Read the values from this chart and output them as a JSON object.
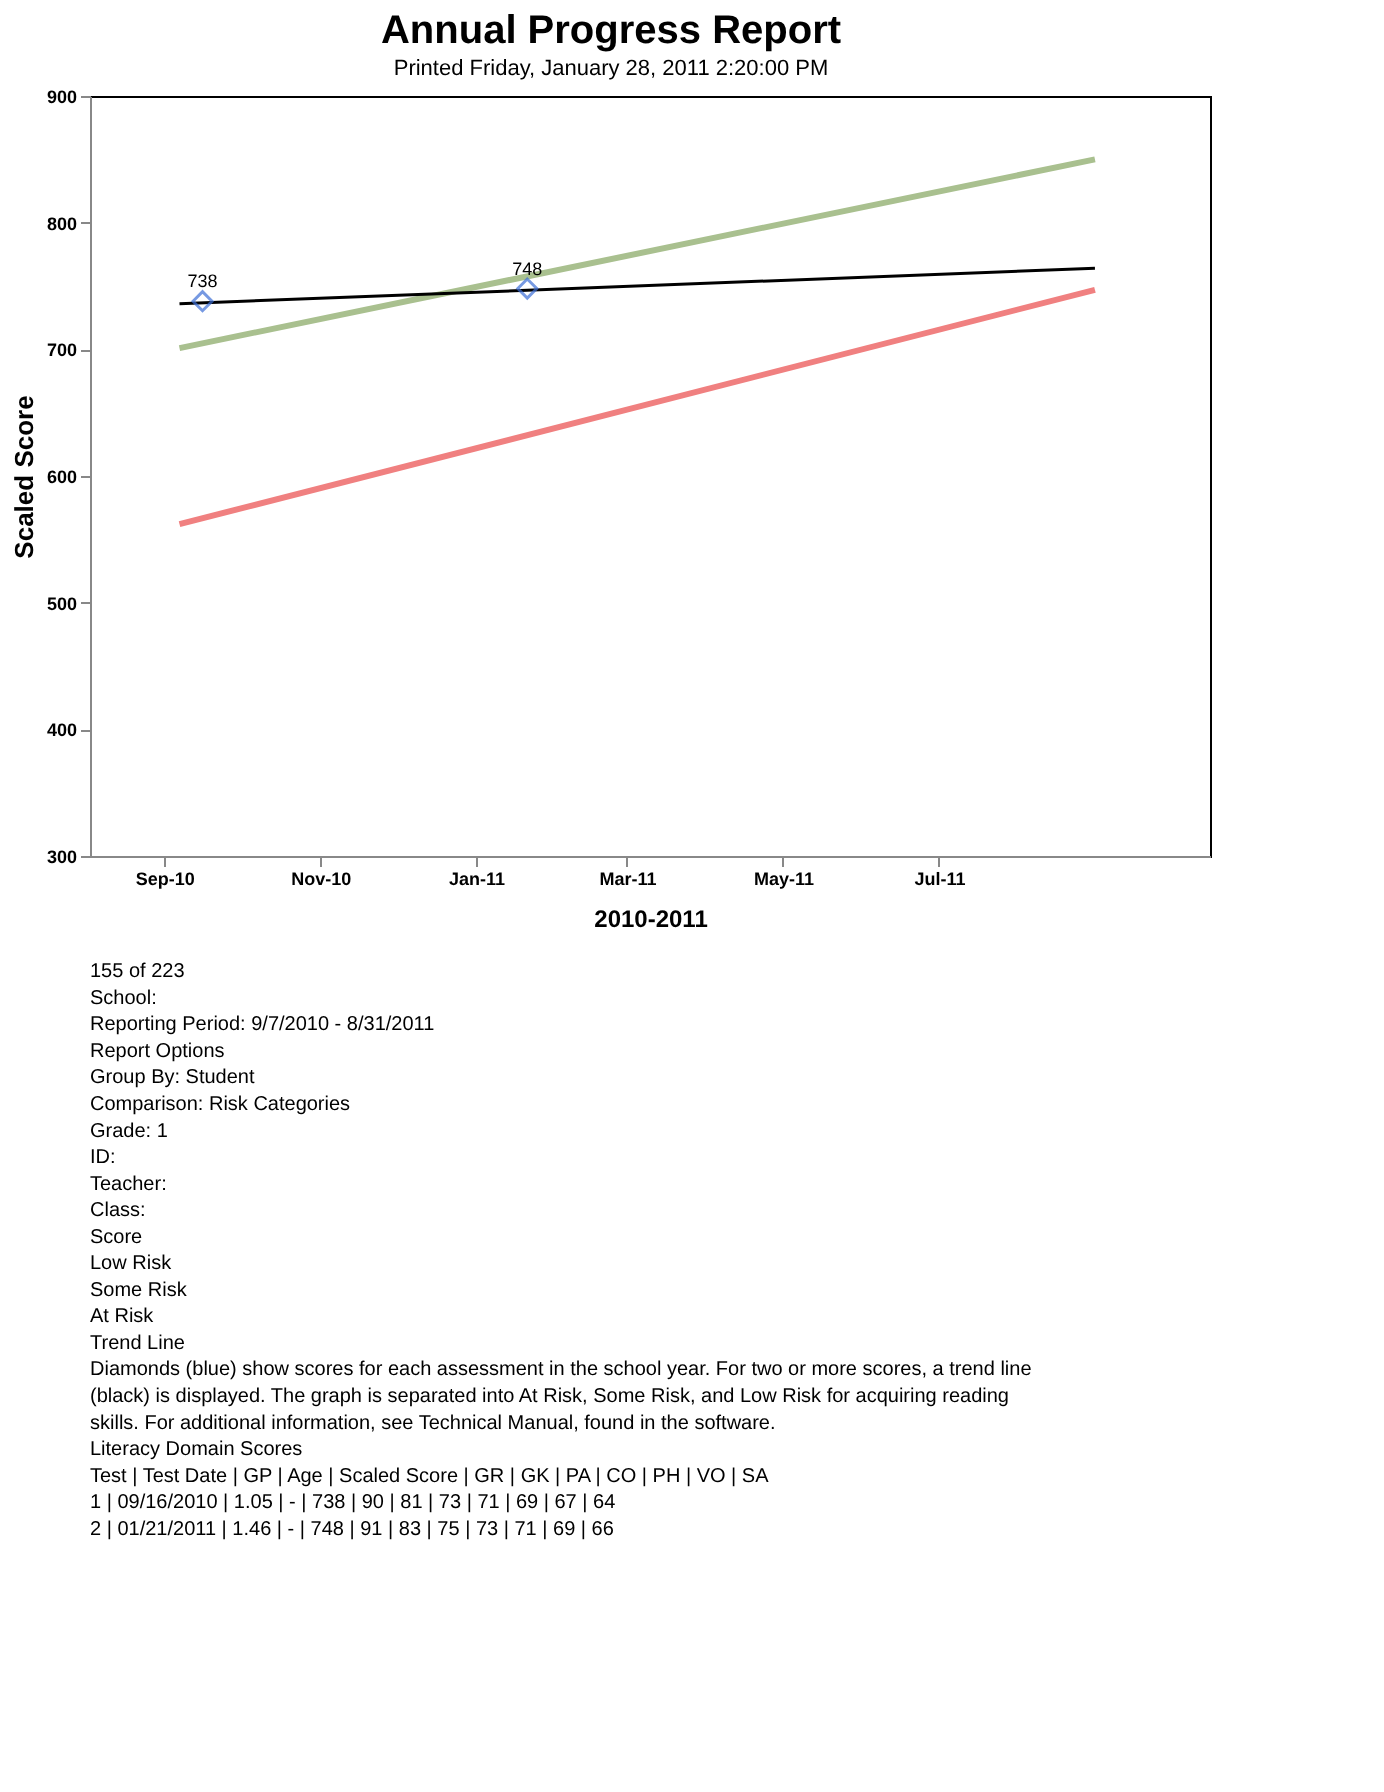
{
  "chart_data": {
    "type": "line",
    "title": "Annual Progress Report",
    "subtitle": "Printed Friday, January 28, 2011  2:20:00 PM",
    "xlabel": "2010-2011",
    "ylabel": "Scaled Score",
    "xlim": [
      "2010-08-03",
      "2011-10-15"
    ],
    "ylim": [
      300,
      900
    ],
    "yticks": [
      300,
      400,
      500,
      600,
      700,
      800,
      900
    ],
    "xticks": [
      {
        "value": "2010-09-01",
        "label": "Sep-10"
      },
      {
        "value": "2010-11-01",
        "label": "Nov-10"
      },
      {
        "value": "2011-01-01",
        "label": "Jan-11"
      },
      {
        "value": "2011-03-01",
        "label": "Mar-11"
      },
      {
        "value": "2011-05-01",
        "label": "May-11"
      },
      {
        "value": "2011-07-01",
        "label": "Jul-11"
      }
    ],
    "grid": false,
    "series": [
      {
        "color": "#a9c08f",
        "x": [
          "2010-09-07",
          "2011-08-31"
        ],
        "values": [
          701,
          850
        ]
      },
      {
        "color": "#f08080",
        "x": [
          "2010-09-07",
          "2011-08-31"
        ],
        "values": [
          562,
          747
        ]
      },
      {
        "color": "#000000",
        "x": [
          "2010-09-07",
          "2011-08-31"
        ],
        "values": [
          736,
          764
        ]
      },
      {
        "type": "scatter",
        "color": "#3d6fd6",
        "marker": "diamond",
        "data_labels": true,
        "x": [
          "2010-09-16",
          "2011-01-21"
        ],
        "values": [
          738,
          748
        ]
      }
    ],
    "annotations": [
      "155 of 223",
      "School:",
      "Reporting Period: 9/7/2010 - 8/31/2011",
      "Report Options",
      "Group By: Student",
      "Comparison: Risk Categories",
      "Grade: 1",
      "ID:",
      "Teacher:",
      "Class:",
      "Score",
      "Low Risk",
      "Some Risk",
      "At Risk",
      "Trend Line",
      "Diamonds (blue) show scores for each assessment in the school year. For two or more scores, a trend line (black) is displayed. The graph is separated into At Risk, Some Risk, and Low Risk for acquiring reading skills. For additional information, see Technical Manual, found in the software.",
      "Literacy Domain Scores",
      "Test | Test Date | GP | Age | Scaled Score | GR | GK | PA | CO | PH | VO | SA",
      "1 | 09/16/2010 | 1.05 | - | 738 | 90 | 81 | 73 | 71 | 69 | 67 | 64",
      "2 | 01/21/2011 | 1.46 | - | 748 | 91 | 83 | 75 | 73 | 71 | 69 | 66"
    ]
  }
}
